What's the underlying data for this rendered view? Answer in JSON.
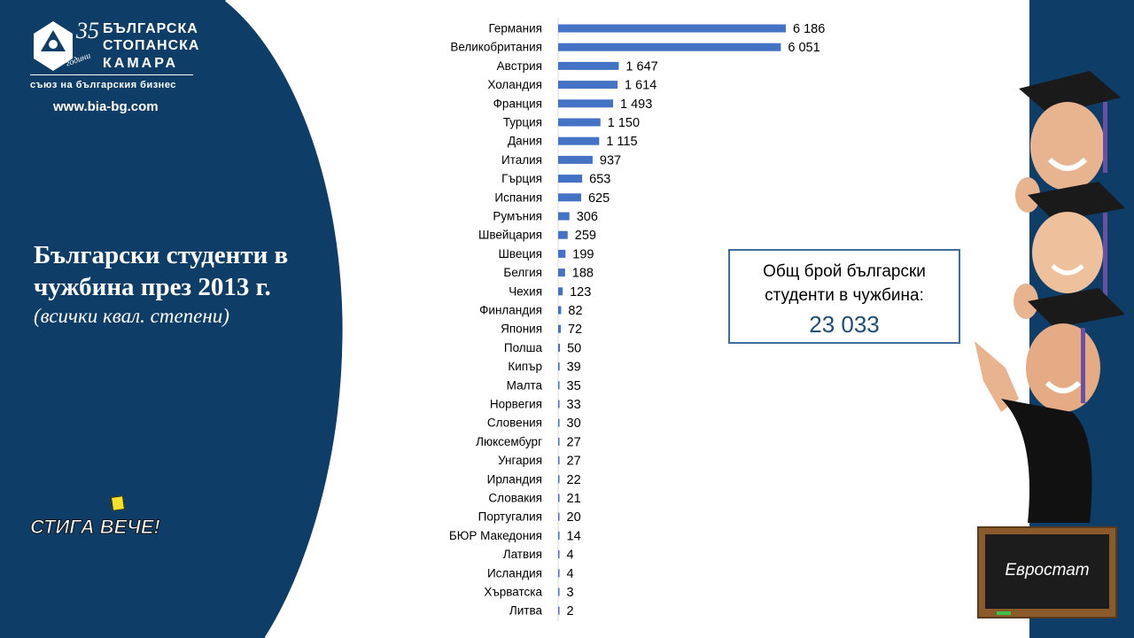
{
  "logo": {
    "line1": "БЪЛГАРСКА",
    "line2": "СТОПАНСКА",
    "line3": "КАМАРА",
    "tagline": "съюз на българския бизнес",
    "anniversary_number": "35",
    "anniversary_word": "години",
    "url": "www.bia-bg.com"
  },
  "slide": {
    "title": "Български студенти в чужбина през 2013 г.",
    "subtitle": "(всички квал. степени)",
    "campaign": "СТИГА ВЕЧЕ!"
  },
  "total": {
    "label": "Общ брой български студенти в чужбина:",
    "value": "23 033"
  },
  "source": "Евростат",
  "colors": {
    "navy": "#0e3d68",
    "bar": "#4472c4",
    "box_border": "#3d6e9e"
  },
  "chart_data": {
    "type": "bar",
    "orientation": "horizontal",
    "categories": [
      "Германия",
      "Великобритания",
      "Австрия",
      "Холандия",
      "Франция",
      "Турция",
      "Дания",
      "Италия",
      "Гърция",
      "Испания",
      "Румъния",
      "Швейцария",
      "Швеция",
      "Белгия",
      "Чехия",
      "Финландия",
      "Япония",
      "Полша",
      "Кипър",
      "Малта",
      "Норвегия",
      "Словения",
      "Люксембург",
      "Унгария",
      "Ирландия",
      "Словакия",
      "Португалия",
      "БЮР Македония",
      "Латвия",
      "Исландия",
      "Хърватска",
      "Литва"
    ],
    "values": [
      6186,
      6051,
      1647,
      1614,
      1493,
      1150,
      1115,
      937,
      653,
      625,
      306,
      259,
      199,
      188,
      123,
      82,
      72,
      50,
      39,
      35,
      33,
      30,
      27,
      27,
      22,
      21,
      20,
      14,
      4,
      4,
      3,
      2
    ],
    "value_labels": [
      "6 186",
      "6 051",
      "1 647",
      "1 614",
      "1 493",
      "1 150",
      "1 115",
      "937",
      "653",
      "625",
      "306",
      "259",
      "199",
      "188",
      "123",
      "82",
      "72",
      "50",
      "39",
      "35",
      "33",
      "30",
      "27",
      "27",
      "22",
      "21",
      "20",
      "14",
      "4",
      "4",
      "3",
      "2"
    ],
    "xlim": [
      0,
      6186
    ],
    "grid": false,
    "legend": "none",
    "data_labels": true
  }
}
